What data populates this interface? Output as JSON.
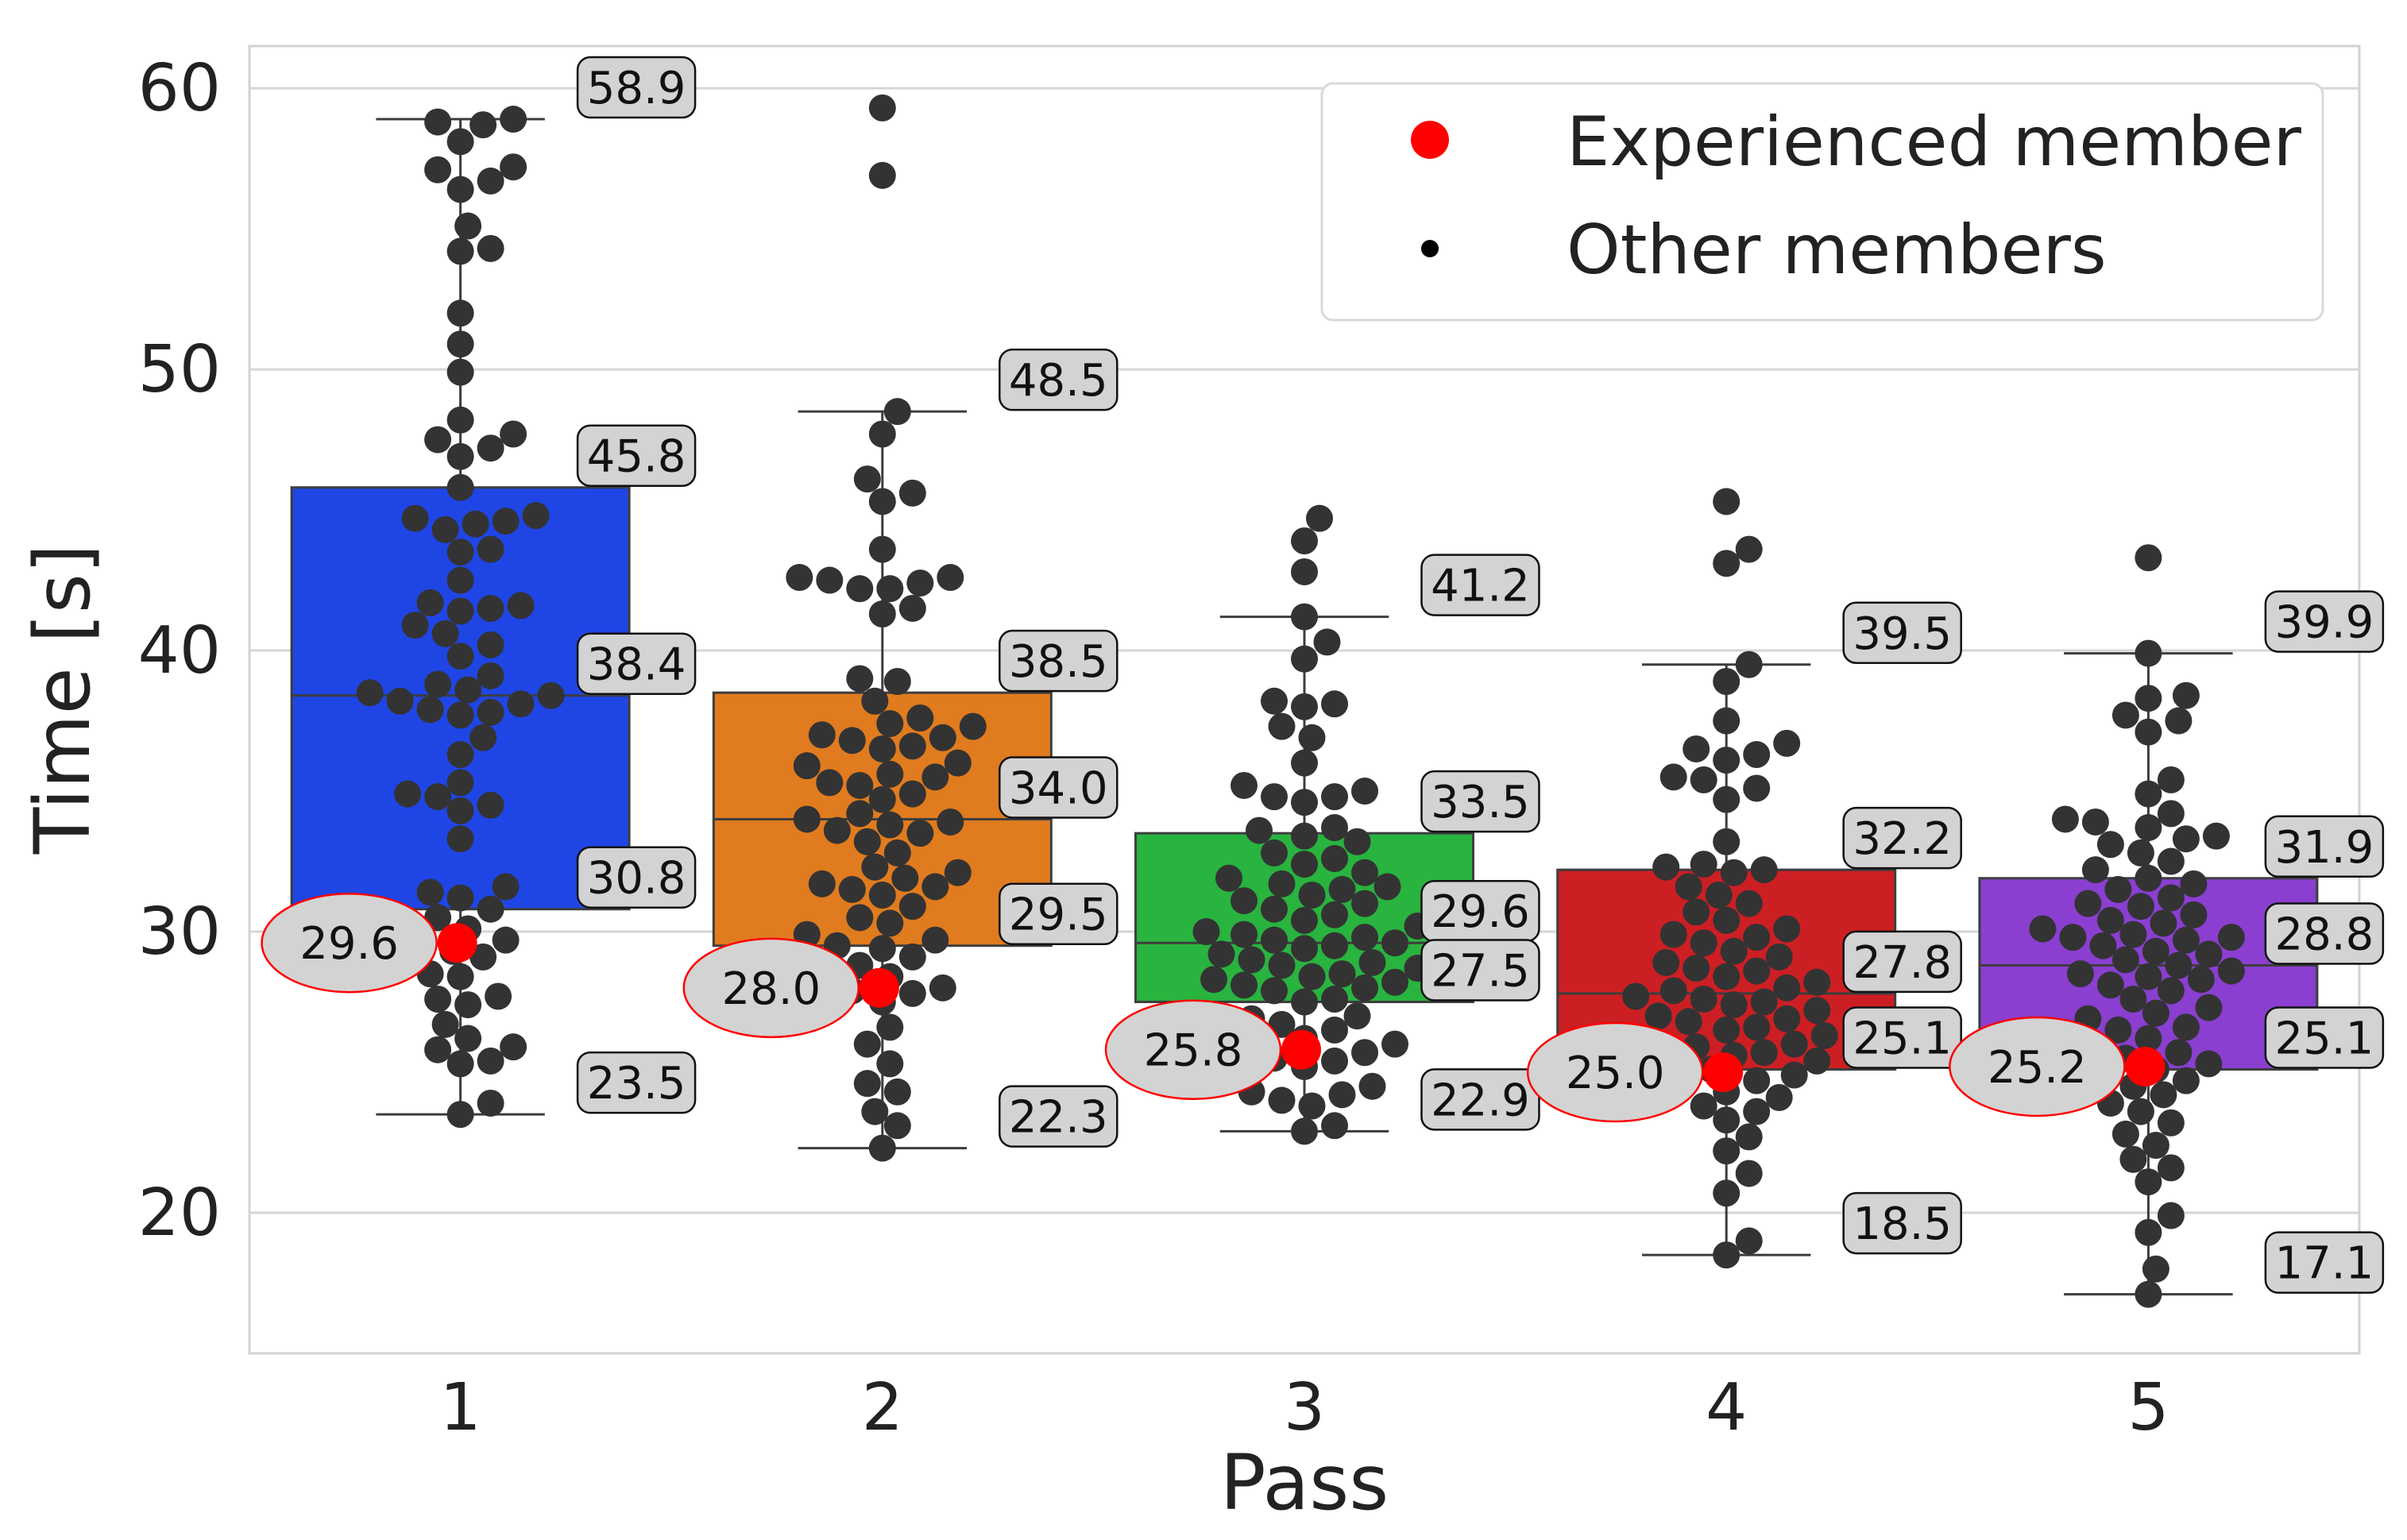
{
  "chart_data": {
    "type": "box",
    "title": "",
    "xlabel": "Pass",
    "ylabel": "Time [s]",
    "ylim": [
      15,
      61.5
    ],
    "yticks": [
      20,
      30,
      40,
      50,
      60
    ],
    "grid": true,
    "legend_position": "top-right",
    "legend": [
      {
        "label": "Experienced member",
        "marker": "large-red-dot",
        "color": "#ff0000"
      },
      {
        "label": "Other members",
        "marker": "small-black-dot",
        "color": "#000000"
      }
    ],
    "categories": [
      "1",
      "2",
      "3",
      "4",
      "5"
    ],
    "box_colors": [
      "#1f46e5",
      "#e07b1f",
      "#29b33f",
      "#cc1f24",
      "#8a3fd0"
    ],
    "point_color": "#333333",
    "experienced_color": "#ff0000",
    "boxes": [
      {
        "pass": "1",
        "whisker_low": 23.5,
        "q1": 30.8,
        "median": 38.4,
        "q3": 45.8,
        "whisker_high": 58.9,
        "outliers": [],
        "experienced": 29.6,
        "points": [
          58.9,
          58.8,
          58.7,
          58.1,
          57.2,
          57.1,
          56.7,
          56.4,
          55.1,
          54.3,
          54.2,
          52.0,
          50.9,
          49.9,
          48.2,
          47.7,
          47.5,
          47.2,
          46.9,
          45.8,
          44.8,
          44.7,
          44.6,
          44.5,
          44.3,
          43.6,
          43.5,
          42.5,
          41.7,
          41.6,
          41.5,
          41.4,
          40.9,
          40.6,
          40.2,
          39.8,
          39.1,
          38.8,
          38.6,
          38.5,
          38.4,
          38.2,
          38.1,
          37.9,
          37.8,
          37.7,
          36.9,
          36.3,
          35.3,
          34.9,
          34.8,
          34.5,
          34.3,
          33.3,
          31.6,
          31.4,
          31.2,
          30.8,
          30.5,
          30.1,
          29.9,
          29.7,
          29.6,
          29.3,
          29.1,
          28.5,
          28.4,
          27.7,
          27.6,
          27.4,
          26.7,
          26.2,
          25.9,
          25.8,
          25.4,
          25.3,
          23.9,
          23.5
        ]
      },
      {
        "pass": "2",
        "whisker_low": 22.3,
        "q1": 29.5,
        "median": 34.0,
        "q3": 38.5,
        "whisker_high": 48.5,
        "outliers": [
          59.3,
          56.9
        ],
        "experienced": 28.0,
        "points": [
          48.5,
          47.7,
          46.1,
          45.6,
          45.3,
          43.6,
          42.6,
          42.6,
          42.5,
          42.4,
          42.2,
          42.2,
          41.5,
          41.3,
          39.0,
          38.9,
          38.2,
          37.6,
          37.4,
          37.3,
          37.0,
          36.9,
          36.8,
          36.6,
          36.5,
          36.0,
          35.9,
          35.6,
          35.5,
          35.3,
          35.2,
          34.9,
          34.7,
          34.2,
          34.0,
          33.9,
          33.8,
          33.6,
          33.5,
          33.2,
          32.8,
          32.3,
          32.1,
          31.9,
          31.7,
          31.6,
          31.5,
          31.3,
          30.9,
          30.5,
          30.3,
          29.9,
          29.7,
          29.5,
          29.4,
          29.1,
          28.8,
          28.4,
          28.2,
          28.0,
          27.9,
          27.8,
          27.5,
          26.6,
          26.0,
          25.3,
          24.6,
          24.3,
          23.6,
          23.1,
          22.3
        ]
      },
      {
        "pass": "3",
        "whisker_low": 22.9,
        "q1": 27.5,
        "median": 29.6,
        "q3": 33.5,
        "whisker_high": 41.2,
        "outliers": [
          44.7,
          43.9,
          42.8
        ],
        "experienced": 25.8,
        "points": [
          41.2,
          40.3,
          39.7,
          38.2,
          38.1,
          38.0,
          37.3,
          36.9,
          36.0,
          35.2,
          35.0,
          34.8,
          34.8,
          34.6,
          33.7,
          33.6,
          33.4,
          33.2,
          32.8,
          32.6,
          32.4,
          32.1,
          31.9,
          31.7,
          31.6,
          31.5,
          31.3,
          31.1,
          31.0,
          30.8,
          30.6,
          30.4,
          30.2,
          30.0,
          29.9,
          29.8,
          29.7,
          29.6,
          29.5,
          29.4,
          29.2,
          29.0,
          28.9,
          28.8,
          28.7,
          28.5,
          28.4,
          28.3,
          28.2,
          28.1,
          28.0,
          27.9,
          27.6,
          27.5,
          27.0,
          26.9,
          26.7,
          26.5,
          26.2,
          26.0,
          25.9,
          25.7,
          25.5,
          25.4,
          25.2,
          24.6,
          24.5,
          24.3,
          24.2,
          24.0,
          23.8,
          23.1,
          22.9
        ]
      },
      {
        "pass": "4",
        "whisker_low": 18.5,
        "q1": 25.1,
        "median": 27.8,
        "q3": 32.2,
        "whisker_high": 39.5,
        "outliers": [
          45.3,
          43.6,
          43.1
        ],
        "experienced": 25.0,
        "points": [
          39.5,
          38.9,
          37.5,
          36.7,
          36.5,
          36.3,
          36.1,
          35.5,
          35.4,
          35.1,
          34.7,
          33.2,
          32.4,
          32.3,
          32.2,
          32.1,
          31.6,
          31.3,
          31.0,
          30.7,
          30.4,
          30.1,
          29.9,
          29.8,
          29.6,
          29.3,
          29.1,
          28.9,
          28.7,
          28.6,
          28.4,
          28.2,
          28.0,
          27.9,
          27.7,
          27.6,
          27.5,
          27.4,
          27.2,
          27.0,
          26.9,
          26.8,
          26.6,
          26.5,
          26.3,
          26.1,
          26.0,
          25.9,
          25.7,
          25.6,
          25.4,
          25.3,
          25.1,
          24.9,
          24.7,
          24.5,
          24.3,
          24.1,
          23.8,
          23.6,
          23.3,
          22.7,
          22.2,
          21.4,
          20.7,
          19.0,
          18.5
        ]
      },
      {
        "pass": "5",
        "whisker_low": 17.1,
        "q1": 25.1,
        "median": 28.8,
        "q3": 31.9,
        "whisker_high": 39.9,
        "outliers": [
          43.3
        ],
        "experienced": 25.2,
        "points": [
          39.9,
          38.4,
          38.3,
          37.7,
          37.5,
          37.1,
          35.4,
          34.9,
          34.2,
          34.0,
          33.9,
          33.7,
          33.4,
          33.3,
          33.1,
          32.8,
          32.5,
          32.2,
          31.9,
          31.7,
          31.5,
          31.2,
          31.0,
          30.9,
          30.6,
          30.4,
          30.3,
          30.1,
          29.9,
          29.8,
          29.8,
          29.7,
          29.5,
          29.3,
          29.2,
          29.0,
          28.8,
          28.6,
          28.5,
          28.4,
          28.3,
          28.1,
          27.9,
          27.6,
          27.3,
          27.1,
          26.9,
          26.6,
          26.5,
          26.2,
          25.9,
          25.7,
          25.5,
          25.3,
          25.1,
          24.9,
          24.7,
          24.5,
          24.2,
          23.9,
          23.6,
          23.2,
          22.8,
          22.4,
          21.9,
          21.6,
          21.1,
          19.9,
          19.3,
          18.0,
          17.1
        ]
      }
    ],
    "annotations": {
      "box_value_labels": [
        [
          "58.9",
          "45.8",
          "38.4",
          "30.8",
          "23.5"
        ],
        [
          "48.5",
          "38.5",
          "34.0",
          "29.5",
          "22.3"
        ],
        [
          "41.2",
          "33.5",
          "29.6",
          "27.5",
          "22.9"
        ],
        [
          "39.5",
          "32.2",
          "27.8",
          "25.1",
          "18.5"
        ],
        [
          "39.9",
          "31.9",
          "28.8",
          "25.1",
          "17.1"
        ]
      ],
      "experienced_labels": [
        "29.6",
        "28.0",
        "25.8",
        "25.0",
        "25.2"
      ]
    }
  }
}
